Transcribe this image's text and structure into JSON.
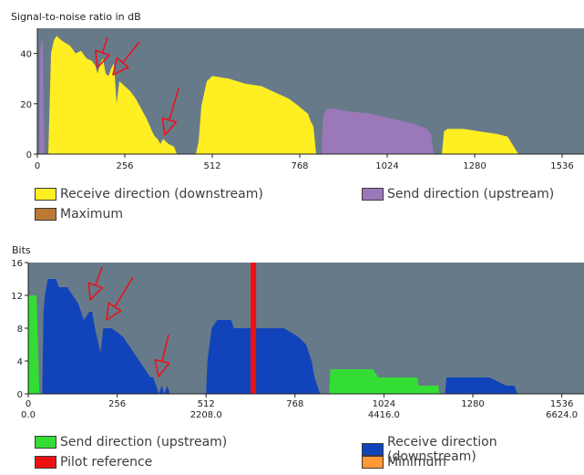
{
  "chart_data": [
    {
      "type": "area",
      "ylabel": "Signal-to-noise ratio in dB",
      "xlim": [
        0,
        1600
      ],
      "ylim": [
        0,
        50
      ],
      "xticks": [
        0,
        256,
        512,
        768,
        1024,
        1280,
        1536
      ],
      "yticks": [
        0,
        20,
        40
      ],
      "grid": false,
      "legend_position": "bottom",
      "series": [
        {
          "name": "Receive direction (downstream)",
          "color": "#ffee22",
          "segments": [
            [
              [
                32,
                0
              ],
              [
                36,
                20
              ],
              [
                40,
                40
              ],
              [
                48,
                45
              ],
              [
                56,
                47
              ],
              [
                72,
                45
              ],
              [
                96,
                43
              ],
              [
                112,
                40
              ],
              [
                128,
                41
              ],
              [
                144,
                38
              ],
              [
                160,
                37
              ],
              [
                170,
                35
              ],
              [
                176,
                32
              ],
              [
                184,
                36
              ],
              [
                192,
                38
              ],
              [
                200,
                32
              ],
              [
                208,
                31
              ],
              [
                216,
                34
              ],
              [
                224,
                36
              ],
              [
                232,
                20
              ],
              [
                240,
                29
              ],
              [
                256,
                27
              ],
              [
                272,
                25
              ],
              [
                288,
                22
              ],
              [
                304,
                18
              ],
              [
                320,
                14
              ],
              [
                336,
                9
              ],
              [
                344,
                7
              ],
              [
                352,
                6
              ],
              [
                360,
                4
              ],
              [
                368,
                6
              ],
              [
                376,
                5
              ],
              [
                384,
                4
              ],
              [
                400,
                3
              ],
              [
                408,
                0
              ]
            ],
            [
              [
                464,
                0
              ],
              [
                472,
                5
              ],
              [
                480,
                19
              ],
              [
                496,
                29
              ],
              [
                512,
                31
              ],
              [
                560,
                30
              ],
              [
                608,
                28
              ],
              [
                656,
                27
              ],
              [
                704,
                24
              ],
              [
                736,
                22
              ],
              [
                756,
                20
              ],
              [
                792,
                16
              ],
              [
                800,
                13
              ],
              [
                808,
                11
              ],
              [
                816,
                0
              ]
            ],
            [
              [
                1184,
                0
              ],
              [
                1190,
                9
              ],
              [
                1200,
                10
              ],
              [
                1248,
                10
              ],
              [
                1296,
                9
              ],
              [
                1344,
                8
              ],
              [
                1376,
                7
              ],
              [
                1408,
                0
              ]
            ]
          ]
        },
        {
          "name": "Send direction (upstream)",
          "color": "#9b78b8",
          "segments": [
            [
              [
                6,
                0
              ],
              [
                8,
                40
              ],
              [
                12,
                45
              ],
              [
                16,
                45
              ],
              [
                20,
                0
              ]
            ],
            [
              [
                832,
                0
              ],
              [
                836,
                15
              ],
              [
                848,
                18
              ],
              [
                864,
                18
              ],
              [
                912,
                17
              ],
              [
                976,
                16
              ],
              [
                1040,
                14
              ],
              [
                1104,
                12
              ],
              [
                1140,
                10
              ],
              [
                1152,
                8
              ],
              [
                1160,
                0
              ]
            ]
          ]
        },
        {
          "name": "Maximum",
          "color": "#bb7a33",
          "segments": []
        }
      ]
    },
    {
      "type": "area",
      "ylabel": "Bits",
      "xlim": [
        0,
        1600
      ],
      "ylim": [
        0,
        16
      ],
      "xticks": [
        0,
        256,
        512,
        768,
        1024,
        1280,
        1536
      ],
      "yticks": [
        0,
        4,
        8,
        12,
        16
      ],
      "secondary_xticks": [
        {
          "at": 0,
          "label": "0.0"
        },
        {
          "at": 512,
          "label": "2208.0"
        },
        {
          "at": 1024,
          "label": "4416.0"
        },
        {
          "at": 1536,
          "label": "6624.0"
        }
      ],
      "grid": false,
      "legend_position": "bottom",
      "series": [
        {
          "name": "Send direction (upstream)",
          "color": "#33dd33",
          "segments": [
            [
              [
                0,
                0
              ],
              [
                0,
                12
              ],
              [
                8,
                12
              ],
              [
                24,
                12
              ],
              [
                32,
                0
              ]
            ],
            [
              [
                866,
                0
              ],
              [
                870,
                3
              ],
              [
                992,
                3
              ],
              [
                1008,
                2
              ],
              [
                1120,
                2
              ],
              [
                1124,
                1
              ],
              [
                1180,
                1
              ],
              [
                1184,
                0
              ]
            ]
          ]
        },
        {
          "name": "Receive direction (downstream)",
          "color": "#1144bb",
          "segments": [
            [
              [
                40,
                0
              ],
              [
                44,
                10
              ],
              [
                48,
                12
              ],
              [
                56,
                14
              ],
              [
                80,
                14
              ],
              [
                88,
                13
              ],
              [
                112,
                13
              ],
              [
                128,
                12
              ],
              [
                144,
                11
              ],
              [
                160,
                9
              ],
              [
                176,
                10
              ],
              [
                184,
                10
              ],
              [
                192,
                8
              ],
              [
                208,
                5
              ],
              [
                216,
                8
              ],
              [
                240,
                8
              ],
              [
                272,
                7
              ],
              [
                288,
                6
              ],
              [
                304,
                5
              ],
              [
                320,
                4
              ],
              [
                336,
                3
              ],
              [
                352,
                2
              ],
              [
                360,
                2
              ],
              [
                368,
                1
              ],
              [
                376,
                0
              ],
              [
                384,
                1
              ],
              [
                392,
                0
              ],
              [
                400,
                1
              ],
              [
                408,
                0
              ]
            ],
            [
              [
                512,
                0
              ],
              [
                516,
                4
              ],
              [
                528,
                8
              ],
              [
                544,
                9
              ],
              [
                584,
                9
              ],
              [
                592,
                8
              ],
              [
                736,
                8
              ],
              [
                776,
                7
              ],
              [
                800,
                6
              ],
              [
                816,
                4
              ],
              [
                824,
                2
              ],
              [
                832,
                1
              ],
              [
                840,
                0
              ]
            ],
            [
              [
                1200,
                0
              ],
              [
                1204,
                2
              ],
              [
                1328,
                2
              ],
              [
                1376,
                1
              ],
              [
                1400,
                1
              ],
              [
                1408,
                0
              ]
            ]
          ]
        },
        {
          "name": "Pilot reference",
          "color": "#ee1111",
          "segments": [
            [
              [
                640,
                0
              ],
              [
                640,
                16
              ],
              [
                656,
                16
              ],
              [
                656,
                0
              ]
            ]
          ]
        },
        {
          "name": "Minimum",
          "color": "#ff9933",
          "segments": []
        }
      ]
    }
  ]
}
